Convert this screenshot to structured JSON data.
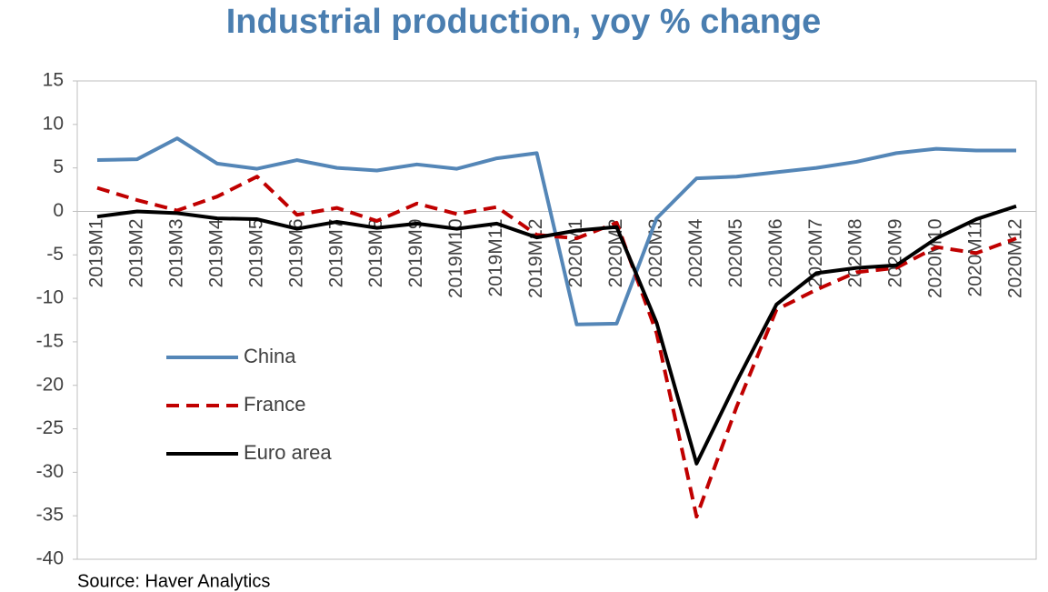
{
  "chart_data": {
    "type": "line",
    "title": "Industrial production, yoy % change",
    "source": "Source: Haver Analytics",
    "categories": [
      "2019M1",
      "2019M2",
      "2019M3",
      "2019M4",
      "2019M5",
      "2019M6",
      "2019M7",
      "2019M8",
      "2019M9",
      "2019M10",
      "2019M11",
      "2019M12",
      "2020M1",
      "2020M2",
      "2020M3",
      "2020M4",
      "2020M5",
      "2020M6",
      "2020M7",
      "2020M8",
      "2020M9",
      "2020M10",
      "2020M11",
      "2020M12"
    ],
    "series": [
      {
        "name": "China",
        "color": "#5486b7",
        "dash": false,
        "values": [
          5.9,
          6.0,
          8.4,
          5.5,
          4.9,
          5.9,
          5.0,
          4.7,
          5.4,
          4.9,
          6.1,
          6.7,
          -13.0,
          -12.9,
          -0.8,
          3.8,
          4.0,
          4.5,
          5.0,
          5.7,
          6.7,
          7.2,
          7.0,
          7.0
        ]
      },
      {
        "name": "France",
        "color": "#c00000",
        "dash": true,
        "values": [
          2.7,
          1.3,
          0.1,
          1.7,
          4.0,
          -0.4,
          0.4,
          -1.1,
          0.9,
          -0.3,
          0.5,
          -2.7,
          -3.1,
          -1.3,
          -14.0,
          -35.1,
          -22.5,
          -11.3,
          -9.0,
          -7.0,
          -6.5,
          -4.1,
          -4.8,
          -3.1
        ]
      },
      {
        "name": "Euro area",
        "color": "#000000",
        "dash": false,
        "values": [
          -0.6,
          0.0,
          -0.2,
          -0.8,
          -0.9,
          -2.0,
          -1.2,
          -1.9,
          -1.4,
          -2.0,
          -1.4,
          -3.0,
          -2.2,
          -1.8,
          -12.8,
          -29.0,
          -19.6,
          -10.7,
          -7.1,
          -6.5,
          -6.2,
          -3.1,
          -0.9,
          0.6
        ]
      }
    ],
    "ylim": [
      -40,
      15
    ],
    "yticks": [
      -40,
      -35,
      -30,
      -25,
      -20,
      -15,
      -10,
      -5,
      0,
      5,
      10,
      15
    ],
    "legend": "lower-left"
  }
}
